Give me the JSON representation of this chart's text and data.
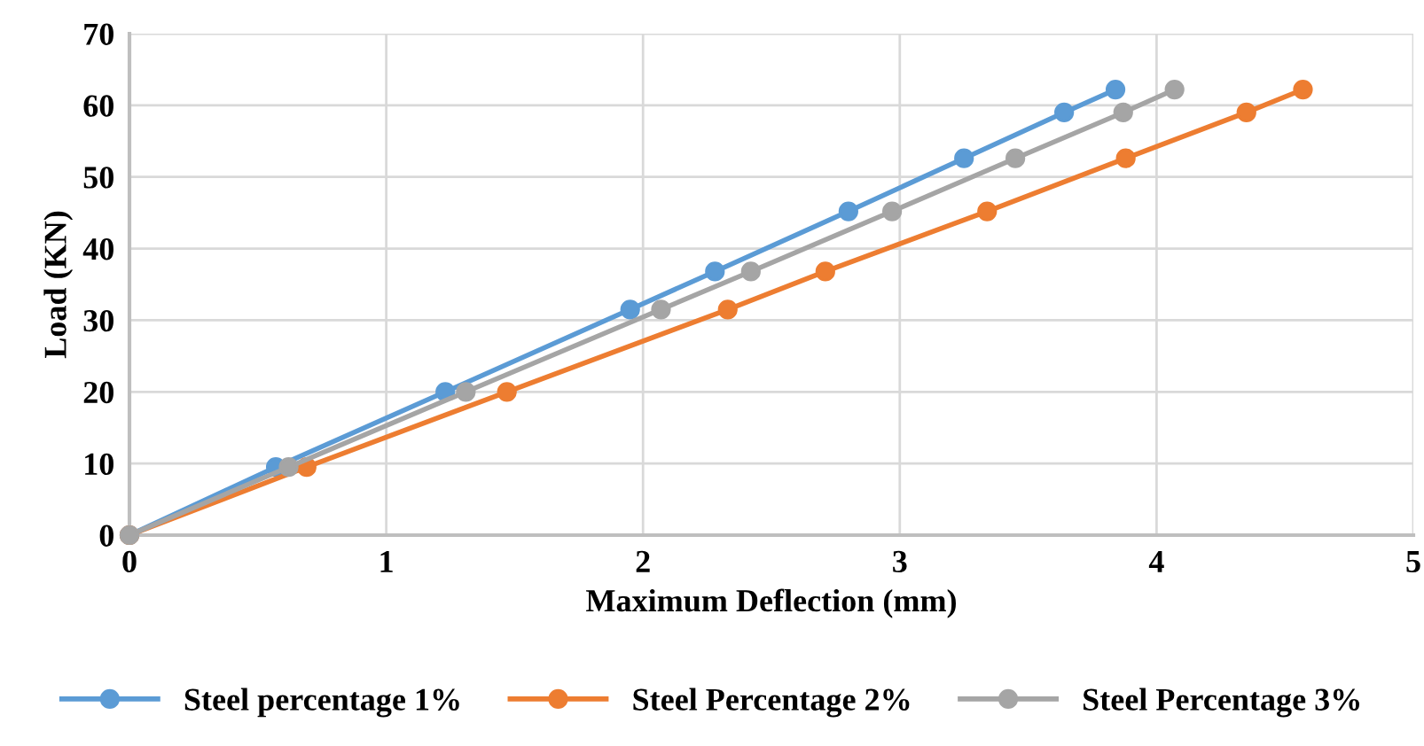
{
  "chart_data": {
    "type": "line",
    "xlabel": "Maximum Deflection (mm)",
    "ylabel": "Load (KN)",
    "xlim": [
      0,
      5
    ],
    "xticks": [
      0,
      1,
      2,
      3,
      4,
      5
    ],
    "ylim": [
      0,
      70
    ],
    "yticks": [
      0,
      10,
      20,
      30,
      40,
      50,
      60,
      70
    ],
    "grid": true,
    "legend": "bottom",
    "marker": "circle",
    "line_style": "solid",
    "series": [
      {
        "name": "Steel percentage 1%",
        "color": "#5b9bd5",
        "x": [
          0,
          0.57,
          1.23,
          1.95,
          2.28,
          2.8,
          3.25,
          3.64,
          3.84
        ],
        "values": [
          0,
          9.5,
          20,
          31.5,
          36.8,
          45.2,
          52.6,
          59,
          62.2
        ]
      },
      {
        "name": "Steel Percentage 2%",
        "color": "#ed7d31",
        "x": [
          0,
          0.69,
          1.47,
          2.33,
          2.71,
          3.34,
          3.88,
          4.35,
          4.57
        ],
        "values": [
          0,
          9.5,
          20,
          31.5,
          36.8,
          45.2,
          52.6,
          59,
          62.2
        ]
      },
      {
        "name": "Steel Percentage 3%",
        "color": "#a5a5a5",
        "x": [
          0,
          0.62,
          1.31,
          2.07,
          2.42,
          2.97,
          3.45,
          3.87,
          4.07
        ],
        "values": [
          0,
          9.5,
          20,
          31.5,
          36.8,
          45.2,
          52.6,
          59,
          62.2
        ]
      }
    ]
  }
}
